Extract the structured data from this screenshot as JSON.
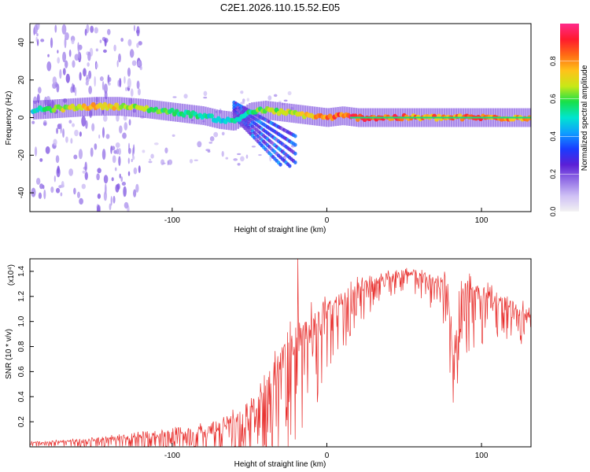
{
  "title": "C2E1.2026.110.15.52.E05",
  "colors": {
    "snr_line": "#e8302e",
    "colorbar": [
      "#f2f2f2",
      "#cfc0f5",
      "#9370e6",
      "#5b1fd6",
      "#1a3cff",
      "#0f9cff",
      "#00e5d0",
      "#17e04a",
      "#c8e817",
      "#ffc21a",
      "#ff6a14",
      "#ff1a2e",
      "#ff2a8a"
    ]
  },
  "chart_data": [
    {
      "type": "heatmap",
      "xlabel": "Height of straight line (km)",
      "ylabel": "Frequency (Hz)",
      "xlim": [
        -192,
        132
      ],
      "ylim": [
        -50,
        50
      ],
      "xticks": [
        -100,
        0,
        100
      ],
      "yticks": [
        -40,
        -20,
        0,
        20,
        40
      ],
      "xtick_labels": [
        "-100",
        "0",
        "100"
      ],
      "ytick_labels": [
        "-40",
        "-20",
        "0",
        "20",
        "40"
      ],
      "colorbar": {
        "label": "Normalized spectral amplitude",
        "range": [
          0,
          1
        ],
        "ticks": [
          "0.0",
          "0.2",
          "0.4",
          "0.6",
          "0.8"
        ]
      },
      "ridge": {
        "x": [
          -190,
          -170,
          -150,
          -135,
          -120,
          -100,
          -80,
          -70,
          -60,
          -50,
          -40,
          -30,
          -20,
          -10,
          0,
          10,
          20,
          40,
          60,
          80,
          100,
          132
        ],
        "y": [
          4,
          5,
          6,
          6,
          5,
          3,
          1,
          -1,
          -2,
          3,
          4,
          3,
          2,
          1,
          0,
          1,
          0,
          0,
          0,
          0,
          0,
          0
        ],
        "amplitude": [
          0.5,
          0.7,
          0.8,
          0.75,
          0.65,
          0.6,
          0.55,
          0.5,
          0.55,
          0.6,
          0.65,
          0.7,
          0.7,
          0.8,
          0.85,
          0.9,
          0.95,
          0.9,
          0.85,
          0.85,
          0.9,
          0.8
        ]
      }
    },
    {
      "type": "line",
      "xlabel": "Height of straight line (km)",
      "ylabel": "SNR (10 * v/v)",
      "exponent_label": "(x10⁴)",
      "xlim": [
        -192,
        132
      ],
      "ylim": [
        0,
        1.5
      ],
      "xticks": [
        -100,
        0,
        100
      ],
      "yticks": [
        0.2,
        0.4,
        0.6,
        0.8,
        1.0,
        1.2,
        1.4
      ],
      "xtick_labels": [
        "-100",
        "0",
        "100"
      ],
      "ytick_labels": [
        "0.2",
        "0.4",
        "0.6",
        "0.8",
        "1.0",
        "1.2",
        "1.4"
      ],
      "envelope": {
        "x": [
          -192,
          -170,
          -150,
          -130,
          -110,
          -90,
          -70,
          -55,
          -45,
          -35,
          -25,
          -15,
          -5,
          0,
          10,
          20,
          30,
          40,
          50,
          60,
          70,
          78,
          82,
          86,
          90,
          100,
          110,
          120,
          132
        ],
        "base": [
          0.03,
          0.04,
          0.05,
          0.06,
          0.08,
          0.1,
          0.12,
          0.2,
          0.35,
          0.5,
          0.7,
          0.85,
          0.95,
          1.05,
          1.15,
          1.25,
          1.3,
          1.35,
          1.38,
          1.36,
          1.3,
          1.25,
          0.6,
          1.2,
          1.22,
          1.2,
          1.15,
          1.1,
          1.05
        ],
        "spread": [
          0.02,
          0.03,
          0.05,
          0.08,
          0.1,
          0.12,
          0.15,
          0.25,
          0.35,
          0.45,
          0.5,
          0.45,
          0.4,
          0.3,
          0.25,
          0.2,
          0.12,
          0.1,
          0.08,
          0.1,
          0.15,
          0.25,
          0.4,
          0.3,
          0.3,
          0.25,
          0.2,
          0.2,
          0.15
        ]
      }
    }
  ]
}
